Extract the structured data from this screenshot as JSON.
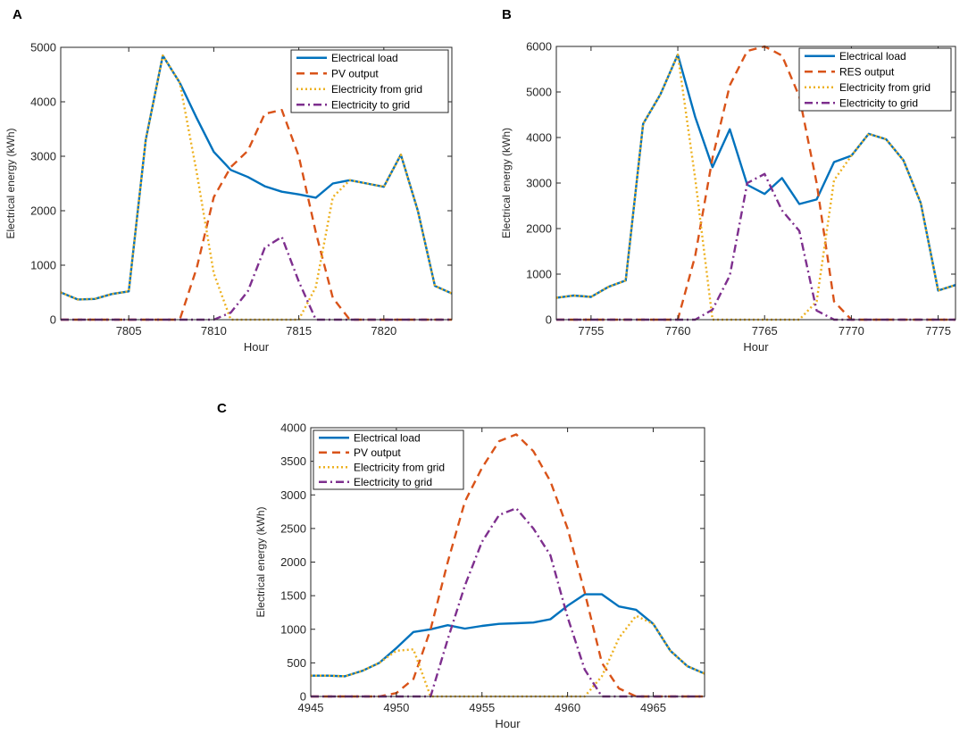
{
  "figure": {
    "panel_letters": [
      "A",
      "B",
      "C"
    ]
  },
  "chart_data": [
    {
      "type": "line",
      "panel": "A",
      "xlabel": "Hour",
      "ylabel": "Electrical energy (kWh)",
      "xlim": [
        7801,
        7824
      ],
      "ylim": [
        0,
        5000
      ],
      "xticks": [
        7805,
        7810,
        7815,
        7820
      ],
      "yticks": [
        0,
        1000,
        2000,
        3000,
        4000,
        5000
      ],
      "legend_position": "top-right",
      "x": [
        7801,
        7802,
        7803,
        7804,
        7805,
        7806,
        7807,
        7808,
        7809,
        7810,
        7811,
        7812,
        7813,
        7814,
        7815,
        7816,
        7817,
        7818,
        7819,
        7820,
        7821,
        7822,
        7823,
        7824
      ],
      "series": [
        {
          "name": "Electrical load",
          "color": "#0072BD",
          "dash": "solid",
          "values": [
            500,
            370,
            380,
            470,
            520,
            3300,
            4850,
            4350,
            3700,
            3080,
            2750,
            2620,
            2450,
            2350,
            2300,
            2240,
            2500,
            2560,
            2500,
            2440,
            3030,
            2000,
            620,
            480
          ]
        },
        {
          "name": "PV output",
          "color": "#D95319",
          "dash": "dashed",
          "values": [
            0,
            0,
            0,
            0,
            0,
            0,
            0,
            0,
            950,
            2250,
            2800,
            3100,
            3780,
            3850,
            3000,
            1600,
            400,
            0,
            0,
            0,
            0,
            0,
            0,
            0
          ]
        },
        {
          "name": "Electricity from grid",
          "color": "#EDB120",
          "dash": "dotted",
          "values": [
            500,
            370,
            380,
            470,
            520,
            3300,
            4850,
            4350,
            2700,
            850,
            0,
            0,
            0,
            0,
            0,
            600,
            2250,
            2560,
            2500,
            2440,
            3030,
            2000,
            620,
            480
          ]
        },
        {
          "name": "Electricity to grid",
          "color": "#7E2F8E",
          "dash": "dashdot",
          "values": [
            0,
            0,
            0,
            0,
            0,
            0,
            0,
            0,
            0,
            0,
            130,
            520,
            1320,
            1520,
            700,
            0,
            0,
            0,
            0,
            0,
            0,
            0,
            0,
            0
          ]
        }
      ]
    },
    {
      "type": "line",
      "panel": "B",
      "xlabel": "Hour",
      "ylabel": "Electrical energy (kWh)",
      "xlim": [
        7753,
        7776
      ],
      "ylim": [
        0,
        6000
      ],
      "xticks": [
        7755,
        7760,
        7765,
        7770,
        7775
      ],
      "yticks": [
        0,
        1000,
        2000,
        3000,
        4000,
        5000,
        6000
      ],
      "legend_position": "top-right",
      "x": [
        7753,
        7754,
        7755,
        7756,
        7757,
        7758,
        7759,
        7760,
        7761,
        7762,
        7763,
        7764,
        7765,
        7766,
        7767,
        7768,
        7769,
        7770,
        7771,
        7772,
        7773,
        7774,
        7775,
        7776
      ],
      "series": [
        {
          "name": "Electrical load",
          "color": "#0072BD",
          "dash": "solid",
          "values": [
            480,
            530,
            500,
            720,
            860,
            4300,
            4950,
            5820,
            4450,
            3350,
            4180,
            2960,
            2760,
            3110,
            2540,
            2640,
            3460,
            3600,
            4080,
            3960,
            3500,
            2560,
            640,
            760
          ]
        },
        {
          "name": "RES output",
          "color": "#D95319",
          "dash": "dashed",
          "values": [
            0,
            0,
            0,
            0,
            0,
            0,
            0,
            0,
            1400,
            3550,
            5150,
            5900,
            6000,
            5800,
            4900,
            3000,
            400,
            0,
            0,
            0,
            0,
            0,
            0,
            0
          ]
        },
        {
          "name": "Electricity from grid",
          "color": "#EDB120",
          "dash": "dotted",
          "values": [
            480,
            530,
            500,
            720,
            860,
            4300,
            4950,
            5820,
            3100,
            0,
            0,
            0,
            0,
            0,
            0,
            400,
            3060,
            3600,
            4080,
            3960,
            3500,
            2560,
            640,
            760
          ]
        },
        {
          "name": "Electricity to grid",
          "color": "#7E2F8E",
          "dash": "dashdot",
          "values": [
            0,
            0,
            0,
            0,
            0,
            0,
            0,
            0,
            0,
            220,
            970,
            3000,
            3200,
            2400,
            1950,
            200,
            0,
            0,
            0,
            0,
            0,
            0,
            0,
            0
          ]
        }
      ]
    },
    {
      "type": "line",
      "panel": "C",
      "xlabel": "Hour",
      "ylabel": "Electrical energy (kWh)",
      "xlim": [
        4945,
        4968
      ],
      "ylim": [
        0,
        4000
      ],
      "xticks": [
        4945,
        4950,
        4955,
        4960,
        4965
      ],
      "yticks": [
        0,
        500,
        1000,
        1500,
        2000,
        2500,
        3000,
        3500,
        4000
      ],
      "legend_position": "top-left",
      "x": [
        4945,
        4946,
        4947,
        4948,
        4949,
        4950,
        4951,
        4952,
        4953,
        4954,
        4955,
        4956,
        4957,
        4958,
        4959,
        4960,
        4961,
        4962,
        4963,
        4964,
        4965,
        4966,
        4967,
        4968
      ],
      "series": [
        {
          "name": "Electrical load",
          "color": "#0072BD",
          "dash": "solid",
          "values": [
            310,
            310,
            300,
            380,
            500,
            720,
            960,
            1000,
            1060,
            1010,
            1050,
            1080,
            1090,
            1100,
            1150,
            1350,
            1520,
            1520,
            1340,
            1290,
            1080,
            680,
            450,
            340
          ]
        },
        {
          "name": "PV output",
          "color": "#D95319",
          "dash": "dashed",
          "values": [
            0,
            0,
            0,
            0,
            0,
            50,
            260,
            1000,
            2000,
            2900,
            3400,
            3800,
            3900,
            3650,
            3200,
            2500,
            1550,
            500,
            120,
            0,
            0,
            0,
            0,
            0
          ]
        },
        {
          "name": "Electricity from grid",
          "color": "#EDB120",
          "dash": "dotted",
          "values": [
            310,
            310,
            300,
            380,
            500,
            680,
            700,
            0,
            0,
            0,
            0,
            0,
            0,
            0,
            0,
            0,
            0,
            300,
            870,
            1200,
            1080,
            680,
            450,
            340
          ]
        },
        {
          "name": "Electricity to grid",
          "color": "#7E2F8E",
          "dash": "dashdot",
          "values": [
            0,
            0,
            0,
            0,
            0,
            0,
            0,
            0,
            850,
            1650,
            2300,
            2700,
            2800,
            2500,
            2100,
            1180,
            400,
            0,
            0,
            0,
            0,
            0,
            0,
            0
          ]
        }
      ]
    }
  ]
}
